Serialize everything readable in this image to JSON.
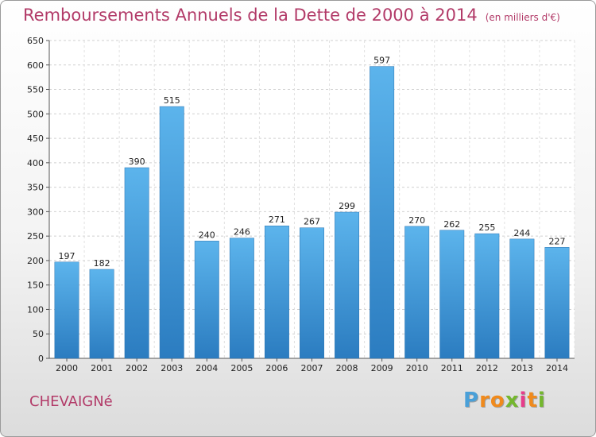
{
  "chart_data": {
    "type": "bar",
    "title": "Remboursements Annuels de la Dette de 2000 à 2014",
    "unit": "(en milliers d'€)",
    "categories": [
      "2000",
      "2001",
      "2002",
      "2003",
      "2004",
      "2005",
      "2006",
      "2007",
      "2008",
      "2009",
      "2010",
      "2011",
      "2012",
      "2013",
      "2014"
    ],
    "values": [
      197,
      182,
      390,
      515,
      240,
      246,
      271,
      267,
      299,
      597,
      270,
      262,
      255,
      244,
      227
    ],
    "ylim": [
      0,
      650
    ],
    "yticks": [
      0,
      50,
      100,
      150,
      200,
      250,
      300,
      350,
      400,
      450,
      500,
      550,
      600,
      650
    ],
    "grid": true,
    "bar_color": "#3a8fd6",
    "title_color": "#b23a68"
  },
  "location": "CHEVAIGNé",
  "logo": {
    "letters": [
      "P",
      "r",
      "o",
      "x",
      "i",
      "t",
      "i"
    ],
    "colors": [
      "#4aa0d8",
      "#f08a1c",
      "#f08a1c",
      "#74b72e",
      "#e73c8a",
      "#f08a1c",
      "#74b72e"
    ]
  }
}
